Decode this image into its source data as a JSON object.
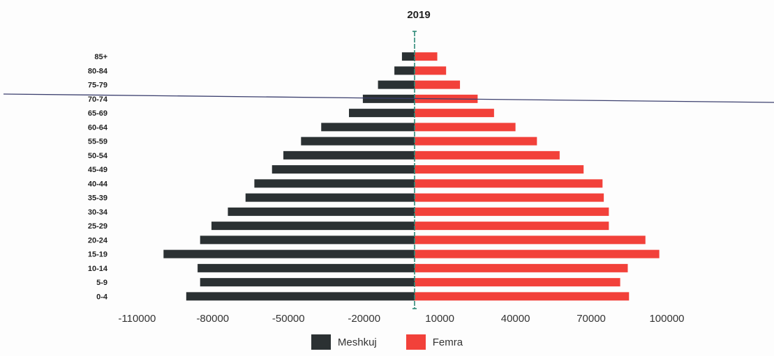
{
  "chart_data": {
    "type": "bar",
    "title": "2019",
    "orientation": "horizontal",
    "categories": [
      "85+",
      "80-84",
      "75-79",
      "70-74",
      "65-69",
      "60-64",
      "55-59",
      "50-54",
      "45-49",
      "40-44",
      "35-39",
      "30-34",
      "25-29",
      "20-24",
      "15-19",
      "10-14",
      "5-9",
      "0-4"
    ],
    "series": [
      {
        "name": "Meshkuj",
        "color": "#2b3133",
        "values": [
          -5000,
          -8000,
          -14500,
          -20500,
          -26000,
          -37000,
          -45000,
          -52000,
          -56500,
          -63500,
          -67000,
          -74000,
          -80500,
          -85000,
          -99500,
          -86000,
          -85000,
          -90500
        ]
      },
      {
        "name": "Femra",
        "color": "#f2413a",
        "values": [
          9000,
          12500,
          18000,
          25000,
          31500,
          40000,
          48500,
          57500,
          67000,
          74500,
          75000,
          77000,
          77000,
          91500,
          97000,
          84500,
          81500,
          85000
        ]
      }
    ],
    "xticks": [
      "-110000",
      "-80000",
      "-50000",
      "-20000",
      "10000",
      "40000",
      "70000",
      "100000"
    ],
    "xtick_values": [
      -110000,
      -80000,
      -50000,
      -20000,
      10000,
      40000,
      70000,
      100000
    ],
    "xlim": [
      -120000,
      110000
    ],
    "grid": false,
    "legend_position": "bottom"
  }
}
